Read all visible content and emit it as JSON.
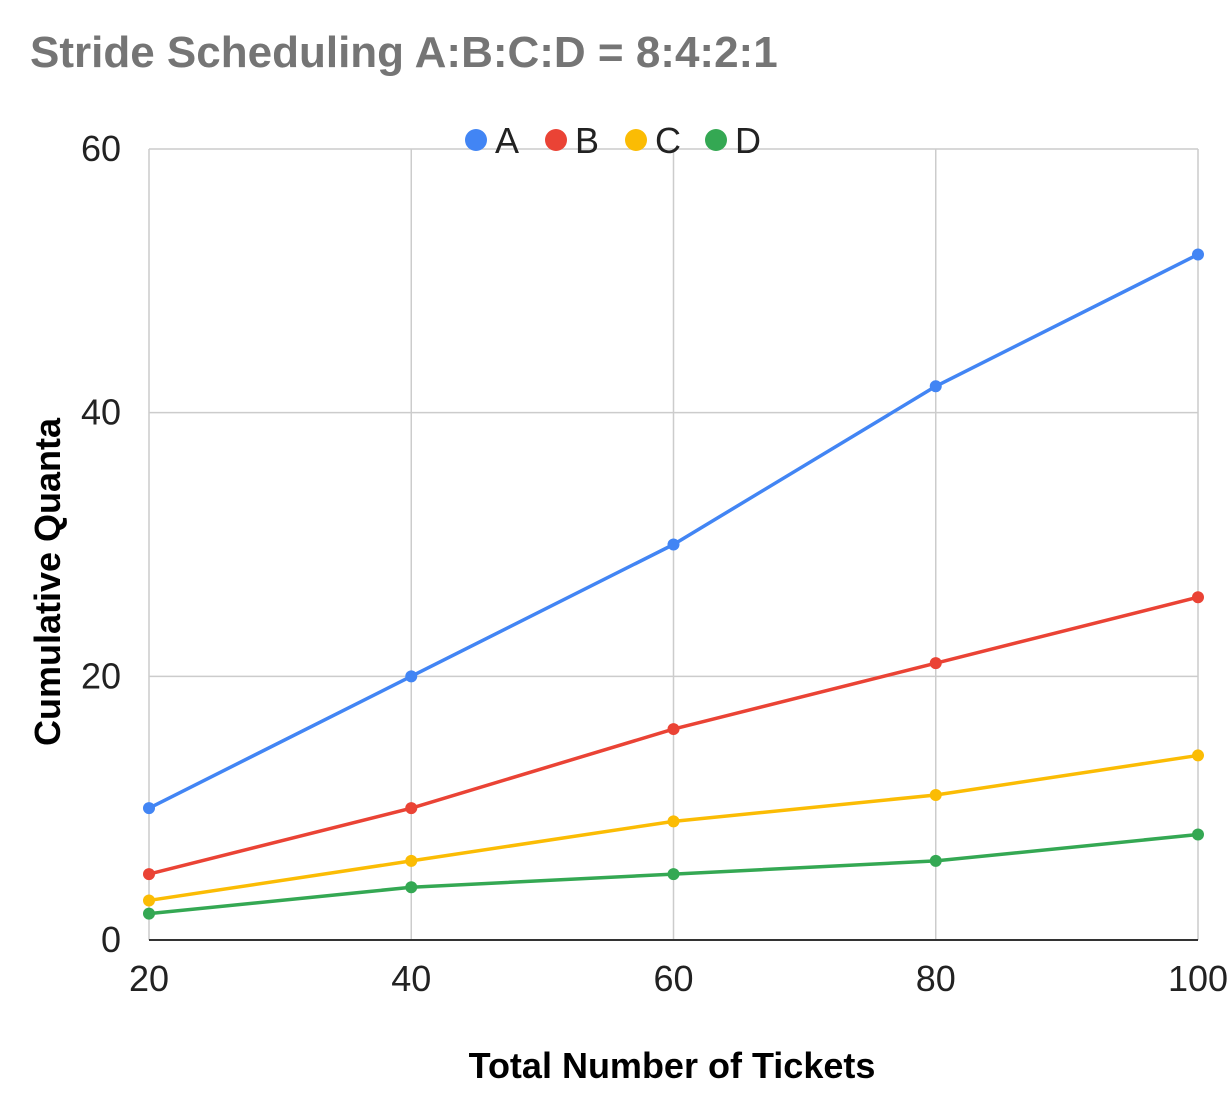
{
  "chart_data": {
    "type": "line",
    "title": "Stride Scheduling A:B:C:D = 8:4:2:1",
    "xlabel": "Total Number of Tickets",
    "ylabel": "Cumulative Quanta",
    "x": [
      20,
      40,
      60,
      80,
      100
    ],
    "x_ticks": [
      "20",
      "40",
      "60",
      "80",
      "100"
    ],
    "y_ticks": [
      "0",
      "20",
      "40",
      "60"
    ],
    "xlim": [
      20,
      100
    ],
    "ylim": [
      0,
      60
    ],
    "grid": true,
    "legend_position": "top",
    "series": [
      {
        "name": "A",
        "color": "#4285f4",
        "values": [
          10,
          20,
          30,
          42,
          52
        ]
      },
      {
        "name": "B",
        "color": "#ea4335",
        "values": [
          5,
          10,
          16,
          21,
          26
        ]
      },
      {
        "name": "C",
        "color": "#fbbc04",
        "values": [
          3,
          6,
          9,
          11,
          14
        ]
      },
      {
        "name": "D",
        "color": "#34a853",
        "values": [
          2,
          4,
          5,
          6,
          8
        ]
      }
    ]
  }
}
